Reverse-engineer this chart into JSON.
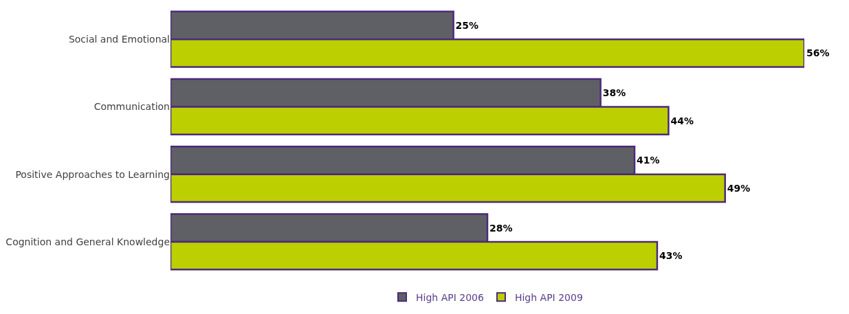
{
  "chart_data": {
    "type": "bar",
    "orientation": "horizontal",
    "categories": [
      "Social and Emotional",
      "Communication",
      "Positive Approaches to Learning",
      "Cognition and General Knowledge"
    ],
    "series": [
      {
        "name": "High API 2006",
        "color": "#5f6066",
        "values": [
          25,
          38,
          41,
          28
        ],
        "value_labels": [
          "25%",
          "38%",
          "41%",
          "28%"
        ]
      },
      {
        "name": "High API 2009",
        "color": "#bccf00",
        "values": [
          56,
          44,
          49,
          43
        ],
        "value_labels": [
          "56%",
          "44%",
          "49%",
          "43%"
        ]
      }
    ],
    "legend": "bottom"
  }
}
